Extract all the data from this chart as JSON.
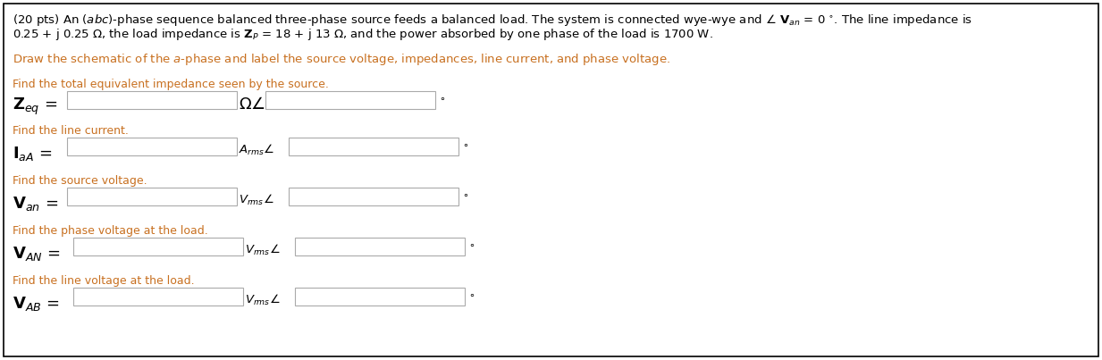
{
  "background_color": "#ffffff",
  "border_color": "#000000",
  "text_color_main": "#000000",
  "text_color_orange": "#c87020",
  "figsize": [
    12.33,
    4.03
  ],
  "dpi": 100,
  "box_facecolor": "#ffffff",
  "box_edgecolor": "#aaaaaa",
  "p1_line1": "(20 pts) An ($\\mathit{abc}$)-phase sequence balanced three-phase source feeds a balanced load. The system is connected wye-wye and $\\angle$ $\\mathbf{V}_{an}$ = 0 $^{\\circ}$. The line impedance is",
  "p1_line2": "0.25 + j 0.25 $\\Omega$, the load impedance is $\\mathbf{Z}_P$ = 18 + j 13 $\\Omega$, and the power absorbed by one phase of the load is 1700 W.",
  "p2": "Draw the schematic of the $\\mathit{a}$-phase and label the source voltage, impedances, line current, and phase voltage.",
  "s1_label": "Find the total equivalent impedance seen by the source.",
  "s2_label": "Find the line current.",
  "s3_label": "Find the source voltage.",
  "s4_label": "Find the phase voltage at the load.",
  "s5_label": "Find the line voltage at the load."
}
